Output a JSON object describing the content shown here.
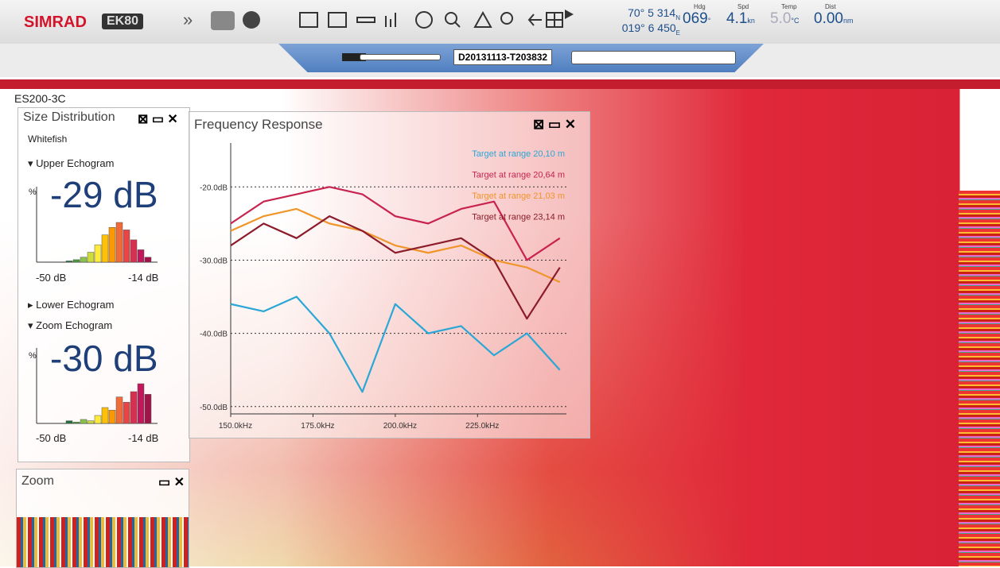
{
  "toolbar": {
    "brand": "SIMRAD",
    "product": "EK80",
    "lat": "70° 5 314",
    "lat_hemi": "N",
    "lon": "019° 6 450",
    "lon_hemi": "E",
    "readouts": [
      {
        "label": "Hdg",
        "value": "069",
        "unit": "°"
      },
      {
        "label": "Spd",
        "value": "4.1",
        "unit": "kn"
      },
      {
        "label": "Temp",
        "value": "5.0",
        "unit": "°C"
      },
      {
        "label": "Dist",
        "value": "0.00",
        "unit": "nm"
      }
    ]
  },
  "player": {
    "file": "D20131113-T203832"
  },
  "echogram": {
    "channel": "ES200-3C"
  },
  "size_distribution": {
    "title": "Size Distribution",
    "species": "Whitefish",
    "y_label": "%",
    "sections": [
      {
        "name": "Upper Echogram",
        "value": "-29 dB",
        "min": "-50 dB",
        "max": "-14 dB",
        "bars": [
          1,
          2,
          4,
          8,
          14,
          22,
          28,
          32,
          26,
          18,
          10,
          4
        ]
      },
      {
        "name": "Lower Echogram"
      },
      {
        "name": "Zoom Echogram",
        "value": "-30 dB",
        "min": "-50 dB",
        "max": "-14 dB",
        "bars": [
          2,
          1,
          3,
          2,
          6,
          12,
          10,
          20,
          16,
          24,
          30,
          22
        ]
      }
    ]
  },
  "zoom": {
    "title": "Zoom"
  },
  "chart_data": {
    "type": "line",
    "title": "Frequency Response",
    "x": [
      150,
      160,
      170,
      180,
      190,
      200,
      210,
      220,
      230,
      240,
      250
    ],
    "xlim": [
      150,
      252
    ],
    "ylim": [
      -51,
      -14
    ],
    "xticks": [
      {
        "value": 150,
        "label": "150.0kHz"
      },
      {
        "value": 175,
        "label": "175.0kHz"
      },
      {
        "value": 200,
        "label": "200.0kHz"
      },
      {
        "value": 225,
        "label": "225.0kHz"
      }
    ],
    "yticks": [
      {
        "value": -20,
        "label": "-20.0dB"
      },
      {
        "value": -30,
        "label": "-30.0dB"
      },
      {
        "value": -40,
        "label": "-40.0dB"
      },
      {
        "value": -50,
        "label": "-50.0dB"
      }
    ],
    "grid": true,
    "series": [
      {
        "name": "Target at range 20,10 m",
        "color": "#2aa7d6",
        "values": [
          -36,
          -37,
          -35,
          -40,
          -48,
          -36,
          -40,
          -39,
          -43,
          -40,
          -45
        ]
      },
      {
        "name": "Target at range 20,64 m",
        "color": "#c8234e",
        "values": [
          -25,
          -22,
          -21,
          -20,
          -21,
          -24,
          -25,
          -23,
          -22,
          -30,
          -27
        ]
      },
      {
        "name": "Target at range 21,03 m",
        "color": "#f0952a",
        "values": [
          -26,
          -24,
          -23,
          -25,
          -26,
          -28,
          -29,
          -28,
          -30,
          -31,
          -33
        ]
      },
      {
        "name": "Target at range 23,14 m",
        "color": "#8c1c2a",
        "values": [
          -28,
          -25,
          -27,
          -24,
          -26,
          -29,
          -28,
          -27,
          -30,
          -38,
          -31
        ]
      }
    ]
  }
}
